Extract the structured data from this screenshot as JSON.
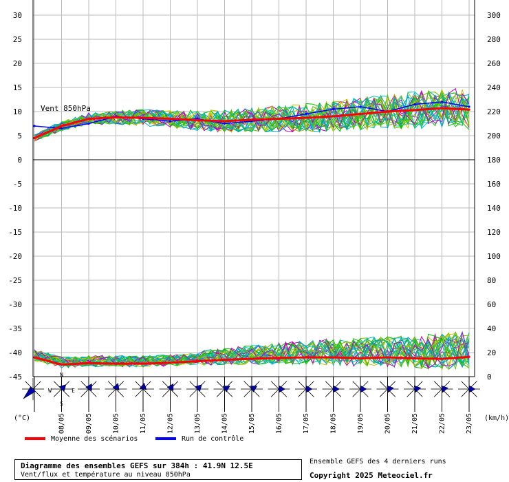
{
  "chart_data": [
    {
      "type": "line",
      "panel": "wind",
      "annotation": "Vent 850hPa",
      "y_left_ticks": [
        "30",
        "25",
        "20",
        "15",
        "10",
        "5",
        "0"
      ],
      "y_right_ticks": [
        "300",
        "280",
        "260",
        "240",
        "220",
        "200",
        "180"
      ],
      "ylim": [
        0,
        30
      ],
      "y_right_lim": [
        180,
        300
      ],
      "x_ticks": [
        "08/05",
        "09/05",
        "10/05",
        "11/05",
        "12/05",
        "13/05",
        "14/05",
        "15/05",
        "16/05",
        "17/05",
        "18/05",
        "19/05",
        "20/05",
        "21/05",
        "22/05",
        "23/05"
      ],
      "grid": true,
      "ensemble_members": 30,
      "series": [
        {
          "name": "Moyenne des scénarios",
          "color": "#ff0000",
          "step_hours": 24,
          "values": [
            4.5,
            7.0,
            8.5,
            8.8,
            8.7,
            8.5,
            8.2,
            8.0,
            8.3,
            8.5,
            8.7,
            9.0,
            9.5,
            10.0,
            10.3,
            10.7,
            10.4
          ]
        },
        {
          "name": "Run de contrôle",
          "color": "#0000ff",
          "step_hours": 24,
          "values": [
            7.0,
            6.5,
            7.5,
            9.0,
            8.5,
            8.0,
            8.5,
            7.5,
            8.0,
            8.5,
            9.5,
            10.5,
            11.0,
            10.0,
            11.5,
            12.0,
            11.0
          ]
        }
      ]
    },
    {
      "type": "line",
      "panel": "temperature",
      "y_left_ticks": [
        "-5",
        "-10",
        "-15",
        "-20",
        "-25",
        "-30",
        "-35",
        "-40",
        "-45"
      ],
      "y_right_ticks": [
        "160",
        "140",
        "120",
        "100",
        "80",
        "60",
        "40",
        "20",
        "0"
      ],
      "ylim": [
        -45,
        0
      ],
      "y_right_lim": [
        0,
        180
      ],
      "y_left_unit": "(°C)",
      "y_right_unit": "(km/h)",
      "grid": true,
      "series": [
        {
          "name": "Moyenne des scénarios",
          "color": "#ff0000",
          "step_hours": 24,
          "values": [
            -41,
            -42.5,
            -42.2,
            -42.3,
            -42.3,
            -42.1,
            -41.8,
            -41.5,
            -41.3,
            -41.1,
            -41.0,
            -41.0,
            -41.2,
            -41.0,
            -41.2,
            -41.3,
            -40.9
          ]
        }
      ]
    }
  ],
  "wind_directions": [
    {
      "icon": "wind-rose-north-east-icon",
      "degrees": 225
    },
    {
      "icon": "wind-rose-icon",
      "degrees": 45
    },
    {
      "icon": "wind-rose-icon",
      "degrees": 30
    },
    {
      "icon": "wind-rose-icon",
      "degrees": 20
    },
    {
      "icon": "wind-rose-icon",
      "degrees": 10
    },
    {
      "icon": "wind-rose-icon",
      "degrees": 30
    },
    {
      "icon": "wind-rose-icon",
      "degrees": 45
    },
    {
      "icon": "wind-rose-icon",
      "degrees": 60
    },
    {
      "icon": "wind-rose-icon",
      "degrees": 60
    },
    {
      "icon": "wind-rose-icon",
      "degrees": 90
    },
    {
      "icon": "wind-rose-icon",
      "degrees": 90
    },
    {
      "icon": "wind-rose-icon",
      "degrees": 90
    },
    {
      "icon": "wind-rose-icon",
      "degrees": 90
    },
    {
      "icon": "wind-rose-icon",
      "degrees": 80
    },
    {
      "icon": "wind-rose-icon",
      "degrees": 80
    },
    {
      "icon": "wind-rose-icon",
      "degrees": 80
    },
    {
      "icon": "wind-rose-icon",
      "degrees": 90
    }
  ],
  "compass": {
    "n": "N",
    "s": "S",
    "e": "E",
    "w": "W"
  },
  "legend": {
    "mean_label": "Moyenne des scénarios",
    "mean_color": "#ff0000",
    "control_label": "Run de contrôle",
    "control_color": "#0000ff"
  },
  "footer": {
    "title": "Diagramme des ensembles GEFS sur 384h : 41.9N 12.5E",
    "subtitle": "Vent/flux et température au niveau 850hPa",
    "ensemble_note": "Ensemble GEFS des 4 derniers runs",
    "copyright": "Copyright 2025 Meteociel.fr"
  },
  "member_colors": [
    "#00c000",
    "#c0c000",
    "#00c0c0",
    "#c000c0",
    "#00a0d0",
    "#60c000"
  ]
}
